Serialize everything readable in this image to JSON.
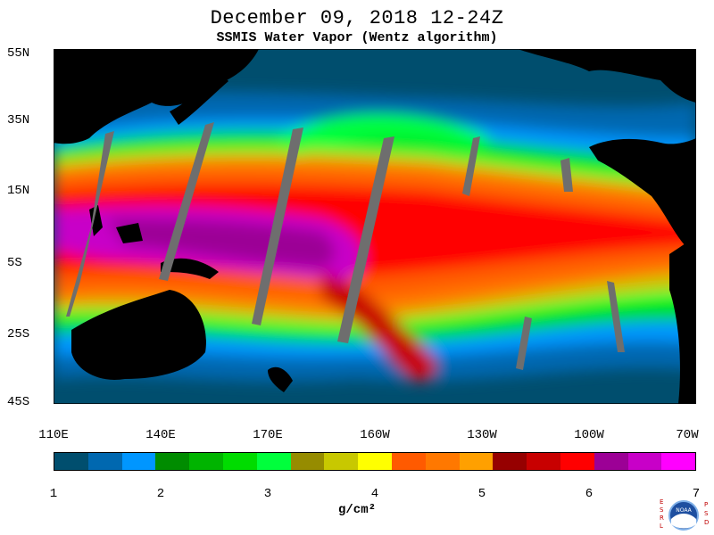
{
  "title": "December 09, 2018  12-24Z",
  "subtitle": "SSMIS Water Vapor (Wentz algorithm)",
  "lat_labels": [
    "55N",
    "35N",
    "15N",
    "5S",
    "25S",
    "45S"
  ],
  "lon_labels": [
    "110E",
    "140E",
    "170E",
    "160W",
    "130W",
    "100W",
    "70W"
  ],
  "colorbar": {
    "colors": [
      "#004e6e",
      "#0068b0",
      "#0096ff",
      "#008c00",
      "#00b400",
      "#00dc00",
      "#00ff3c",
      "#968c00",
      "#c8c800",
      "#ffff00",
      "#ff5a00",
      "#ff7800",
      "#ffa000",
      "#960000",
      "#c80000",
      "#ff0000",
      "#9c0096",
      "#c800c8",
      "#ff00ff"
    ],
    "ticks": [
      "1",
      "2",
      "3",
      "4",
      "5",
      "6",
      "7"
    ]
  },
  "units": "g/cm²",
  "logo": {
    "letters_left": [
      "E",
      "S",
      "R",
      "L"
    ],
    "letters_right": [
      "P",
      "S",
      "D"
    ],
    "name": "NOAA"
  }
}
